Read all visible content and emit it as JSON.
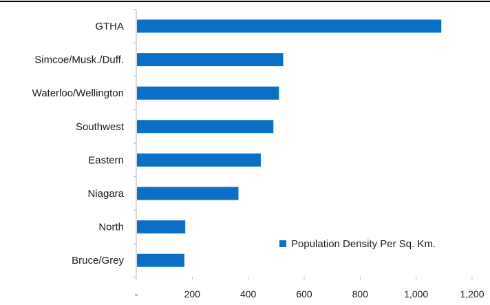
{
  "chart_data": {
    "type": "bar",
    "orientation": "horizontal",
    "title": "",
    "xlabel": "",
    "ylabel": "",
    "categories": [
      "GTHA",
      "Simcoe/Musk./Duff.",
      "Waterloo/Wellington",
      "Southwest",
      "Eastern",
      "Niagara",
      "North",
      "Bruce/Grey"
    ],
    "series": [
      {
        "name": "Population Density Per Sq. Km.",
        "color": "#0c6fc6",
        "values": [
          1090,
          525,
          510,
          490,
          445,
          365,
          175,
          172
        ]
      }
    ],
    "xlim": [
      0,
      1200
    ],
    "x_ticks": [
      0,
      200,
      400,
      600,
      800,
      1000,
      1200
    ],
    "x_tick_labels": [
      "-",
      "200",
      "400",
      "600",
      "800",
      "1,000",
      "1,200"
    ],
    "grid": false,
    "legend_position": "bottom-right"
  }
}
